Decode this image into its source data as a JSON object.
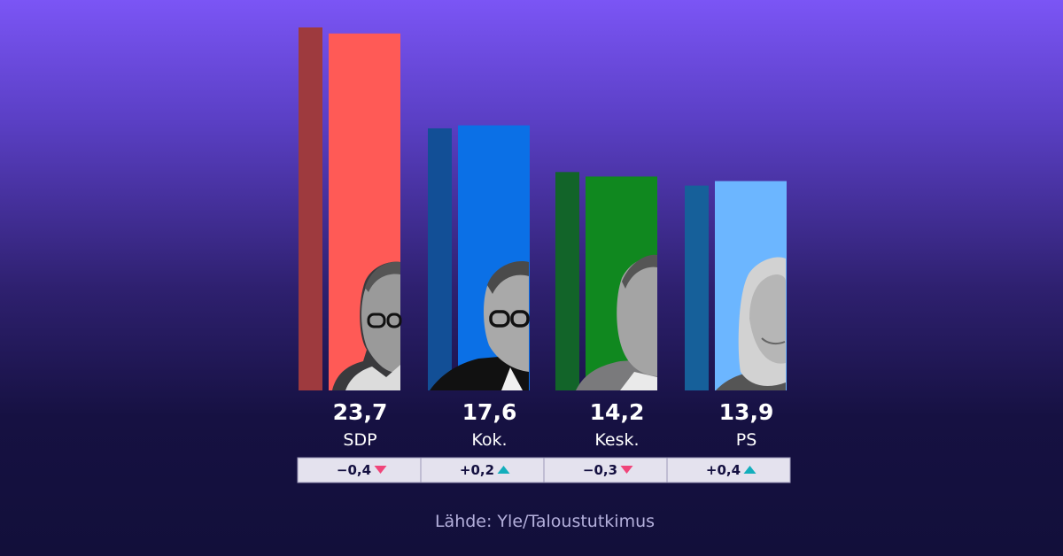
{
  "chart_data": {
    "type": "bar",
    "categories": [
      "SDP",
      "Kok.",
      "Kesk.",
      "PS"
    ],
    "series": [
      {
        "values": [
          24.1,
          17.4,
          14.5,
          13.6
        ]
      },
      {
        "values": [
          23.7,
          17.6,
          14.2,
          13.9
        ]
      }
    ],
    "value_labels": [
      "23,7",
      "17,6",
      "14,2",
      "13,9"
    ],
    "changes": [
      {
        "label": "−0,4",
        "direction": "down"
      },
      {
        "label": "+0,2",
        "direction": "up"
      },
      {
        "label": "−0,3",
        "direction": "down"
      },
      {
        "label": "+0,4",
        "direction": "up"
      }
    ],
    "colors": {
      "previous": [
        "#9e3a3e",
        "#124f96",
        "#126429",
        "#16609a"
      ],
      "current": [
        "#ff5a56",
        "#0b70e6",
        "#10881f",
        "#6cb6ff"
      ],
      "down_arrow": "#f0457a",
      "up_arrow": "#13aebc",
      "change_box": "#e4e2ee"
    },
    "ylim": [
      0,
      24.1
    ],
    "grid": false,
    "legend": "none"
  },
  "source": "Lähde: Yle/Taloustutkimus"
}
